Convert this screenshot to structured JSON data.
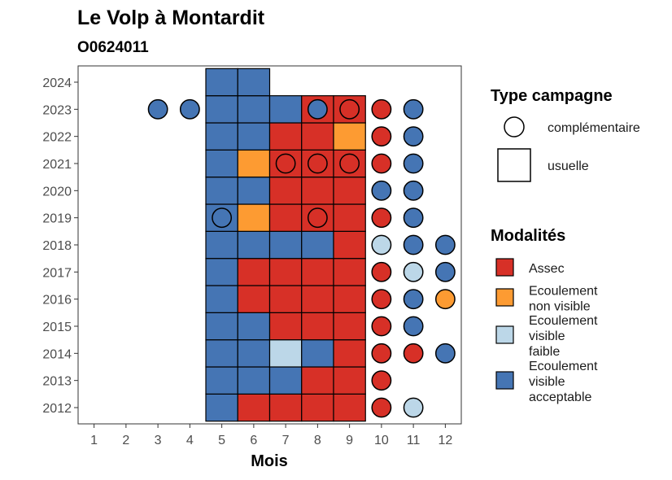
{
  "chart_data": {
    "type": "heatmap",
    "title": "Le Volp à Montardit",
    "subtitle": "O0624011",
    "xlabel": "Mois",
    "ylabel": "",
    "x_ticks": [
      "1",
      "2",
      "3",
      "4",
      "5",
      "6",
      "7",
      "8",
      "9",
      "10",
      "11",
      "12"
    ],
    "y_ticks": [
      "2012",
      "2013",
      "2014",
      "2015",
      "2016",
      "2017",
      "2018",
      "2019",
      "2020",
      "2021",
      "2022",
      "2023",
      "2024"
    ],
    "xlim": [
      0.5,
      12.5
    ],
    "ylim": [
      2011.4,
      2024.6
    ],
    "grid": false,
    "legend_position": "right",
    "colors": {
      "Assec": "#d73027",
      "Ecoulement non visible": "#fd9b32",
      "Ecoulement visible faible": "#bcd7e8",
      "Ecoulement visible acceptable": "#4575b4"
    },
    "legends": {
      "type": {
        "title": "Type campagne",
        "items": [
          {
            "key": "complementaire",
            "label": "complémentaire"
          },
          {
            "key": "usuelle",
            "label": "usuelle"
          }
        ]
      },
      "modalites": {
        "title": "Modalités",
        "items": [
          {
            "key": "Assec",
            "lines": [
              "Assec"
            ]
          },
          {
            "key": "Ecoulement non visible",
            "lines": [
              "Ecoulement",
              "non visible"
            ]
          },
          {
            "key": "Ecoulement visible faible",
            "lines": [
              "Ecoulement",
              "visible",
              "faible"
            ]
          },
          {
            "key": "Ecoulement visible acceptable",
            "lines": [
              "Ecoulement",
              "visible",
              "acceptable"
            ]
          }
        ]
      }
    },
    "usuelle": [
      {
        "year": 2012,
        "month": 5,
        "value": "Ecoulement visible acceptable"
      },
      {
        "year": 2012,
        "month": 6,
        "value": "Assec"
      },
      {
        "year": 2012,
        "month": 7,
        "value": "Assec"
      },
      {
        "year": 2012,
        "month": 8,
        "value": "Assec"
      },
      {
        "year": 2012,
        "month": 9,
        "value": "Assec"
      },
      {
        "year": 2013,
        "month": 5,
        "value": "Ecoulement visible acceptable"
      },
      {
        "year": 2013,
        "month": 6,
        "value": "Ecoulement visible acceptable"
      },
      {
        "year": 2013,
        "month": 7,
        "value": "Ecoulement visible acceptable"
      },
      {
        "year": 2013,
        "month": 8,
        "value": "Assec"
      },
      {
        "year": 2013,
        "month": 9,
        "value": "Assec"
      },
      {
        "year": 2014,
        "month": 5,
        "value": "Ecoulement visible acceptable"
      },
      {
        "year": 2014,
        "month": 6,
        "value": "Ecoulement visible acceptable"
      },
      {
        "year": 2014,
        "month": 7,
        "value": "Ecoulement visible faible"
      },
      {
        "year": 2014,
        "month": 8,
        "value": "Ecoulement visible acceptable"
      },
      {
        "year": 2014,
        "month": 9,
        "value": "Assec"
      },
      {
        "year": 2015,
        "month": 5,
        "value": "Ecoulement visible acceptable"
      },
      {
        "year": 2015,
        "month": 6,
        "value": "Ecoulement visible acceptable"
      },
      {
        "year": 2015,
        "month": 7,
        "value": "Assec"
      },
      {
        "year": 2015,
        "month": 8,
        "value": "Assec"
      },
      {
        "year": 2015,
        "month": 9,
        "value": "Assec"
      },
      {
        "year": 2016,
        "month": 5,
        "value": "Ecoulement visible acceptable"
      },
      {
        "year": 2016,
        "month": 6,
        "value": "Assec"
      },
      {
        "year": 2016,
        "month": 7,
        "value": "Assec"
      },
      {
        "year": 2016,
        "month": 8,
        "value": "Assec"
      },
      {
        "year": 2016,
        "month": 9,
        "value": "Assec"
      },
      {
        "year": 2017,
        "month": 5,
        "value": "Ecoulement visible acceptable"
      },
      {
        "year": 2017,
        "month": 6,
        "value": "Assec"
      },
      {
        "year": 2017,
        "month": 7,
        "value": "Assec"
      },
      {
        "year": 2017,
        "month": 8,
        "value": "Assec"
      },
      {
        "year": 2017,
        "month": 9,
        "value": "Assec"
      },
      {
        "year": 2018,
        "month": 5,
        "value": "Ecoulement visible acceptable"
      },
      {
        "year": 2018,
        "month": 6,
        "value": "Ecoulement visible acceptable"
      },
      {
        "year": 2018,
        "month": 7,
        "value": "Ecoulement visible acceptable"
      },
      {
        "year": 2018,
        "month": 8,
        "value": "Ecoulement visible acceptable"
      },
      {
        "year": 2018,
        "month": 9,
        "value": "Assec"
      },
      {
        "year": 2019,
        "month": 5,
        "value": "Ecoulement visible acceptable"
      },
      {
        "year": 2019,
        "month": 6,
        "value": "Ecoulement non visible"
      },
      {
        "year": 2019,
        "month": 7,
        "value": "Assec"
      },
      {
        "year": 2019,
        "month": 8,
        "value": "Assec"
      },
      {
        "year": 2019,
        "month": 9,
        "value": "Assec"
      },
      {
        "year": 2020,
        "month": 5,
        "value": "Ecoulement visible acceptable"
      },
      {
        "year": 2020,
        "month": 6,
        "value": "Ecoulement visible acceptable"
      },
      {
        "year": 2020,
        "month": 7,
        "value": "Assec"
      },
      {
        "year": 2020,
        "month": 8,
        "value": "Assec"
      },
      {
        "year": 2020,
        "month": 9,
        "value": "Assec"
      },
      {
        "year": 2021,
        "month": 5,
        "value": "Ecoulement visible acceptable"
      },
      {
        "year": 2021,
        "month": 6,
        "value": "Ecoulement non visible"
      },
      {
        "year": 2021,
        "month": 7,
        "value": "Assec"
      },
      {
        "year": 2021,
        "month": 8,
        "value": "Assec"
      },
      {
        "year": 2021,
        "month": 9,
        "value": "Assec"
      },
      {
        "year": 2022,
        "month": 5,
        "value": "Ecoulement visible acceptable"
      },
      {
        "year": 2022,
        "month": 6,
        "value": "Ecoulement visible acceptable"
      },
      {
        "year": 2022,
        "month": 7,
        "value": "Assec"
      },
      {
        "year": 2022,
        "month": 8,
        "value": "Assec"
      },
      {
        "year": 2022,
        "month": 9,
        "value": "Ecoulement non visible"
      },
      {
        "year": 2023,
        "month": 5,
        "value": "Ecoulement visible acceptable"
      },
      {
        "year": 2023,
        "month": 6,
        "value": "Ecoulement visible acceptable"
      },
      {
        "year": 2023,
        "month": 7,
        "value": "Ecoulement visible acceptable"
      },
      {
        "year": 2023,
        "month": 8,
        "value": "Assec"
      },
      {
        "year": 2023,
        "month": 9,
        "value": "Assec"
      },
      {
        "year": 2024,
        "month": 5,
        "value": "Ecoulement visible acceptable"
      },
      {
        "year": 2024,
        "month": 6,
        "value": "Ecoulement visible acceptable"
      }
    ],
    "complementaire": [
      {
        "year": 2012,
        "month": 10,
        "value": "Assec"
      },
      {
        "year": 2012,
        "month": 11,
        "value": "Ecoulement visible faible"
      },
      {
        "year": 2013,
        "month": 10,
        "value": "Assec"
      },
      {
        "year": 2014,
        "month": 10,
        "value": "Assec"
      },
      {
        "year": 2014,
        "month": 11,
        "value": "Assec"
      },
      {
        "year": 2014,
        "month": 12,
        "value": "Ecoulement visible acceptable"
      },
      {
        "year": 2015,
        "month": 10,
        "value": "Assec"
      },
      {
        "year": 2015,
        "month": 11,
        "value": "Ecoulement visible acceptable"
      },
      {
        "year": 2016,
        "month": 10,
        "value": "Assec"
      },
      {
        "year": 2016,
        "month": 11,
        "value": "Ecoulement visible acceptable"
      },
      {
        "year": 2016,
        "month": 12,
        "value": "Ecoulement non visible"
      },
      {
        "year": 2017,
        "month": 10,
        "value": "Assec"
      },
      {
        "year": 2017,
        "month": 11,
        "value": "Ecoulement visible faible"
      },
      {
        "year": 2017,
        "month": 12,
        "value": "Ecoulement visible acceptable"
      },
      {
        "year": 2018,
        "month": 10,
        "value": "Ecoulement visible faible"
      },
      {
        "year": 2018,
        "month": 11,
        "value": "Ecoulement visible acceptable"
      },
      {
        "year": 2018,
        "month": 12,
        "value": "Ecoulement visible acceptable"
      },
      {
        "year": 2019,
        "month": 5,
        "value": "Ecoulement visible acceptable"
      },
      {
        "year": 2019,
        "month": 8,
        "value": "Assec"
      },
      {
        "year": 2019,
        "month": 10,
        "value": "Assec"
      },
      {
        "year": 2019,
        "month": 11,
        "value": "Ecoulement visible acceptable"
      },
      {
        "year": 2020,
        "month": 10,
        "value": "Ecoulement visible acceptable"
      },
      {
        "year": 2020,
        "month": 11,
        "value": "Ecoulement visible acceptable"
      },
      {
        "year": 2021,
        "month": 7,
        "value": "Assec"
      },
      {
        "year": 2021,
        "month": 8,
        "value": "Assec"
      },
      {
        "year": 2021,
        "month": 9,
        "value": "Assec"
      },
      {
        "year": 2021,
        "month": 10,
        "value": "Assec"
      },
      {
        "year": 2021,
        "month": 11,
        "value": "Ecoulement visible acceptable"
      },
      {
        "year": 2022,
        "month": 10,
        "value": "Assec"
      },
      {
        "year": 2022,
        "month": 11,
        "value": "Ecoulement visible acceptable"
      },
      {
        "year": 2023,
        "month": 3,
        "value": "Ecoulement visible acceptable"
      },
      {
        "year": 2023,
        "month": 4,
        "value": "Ecoulement visible acceptable"
      },
      {
        "year": 2023,
        "month": 8,
        "value": "Ecoulement visible acceptable"
      },
      {
        "year": 2023,
        "month": 9,
        "value": "Assec"
      },
      {
        "year": 2023,
        "month": 10,
        "value": "Assec"
      },
      {
        "year": 2023,
        "month": 11,
        "value": "Ecoulement visible acceptable"
      }
    ]
  }
}
